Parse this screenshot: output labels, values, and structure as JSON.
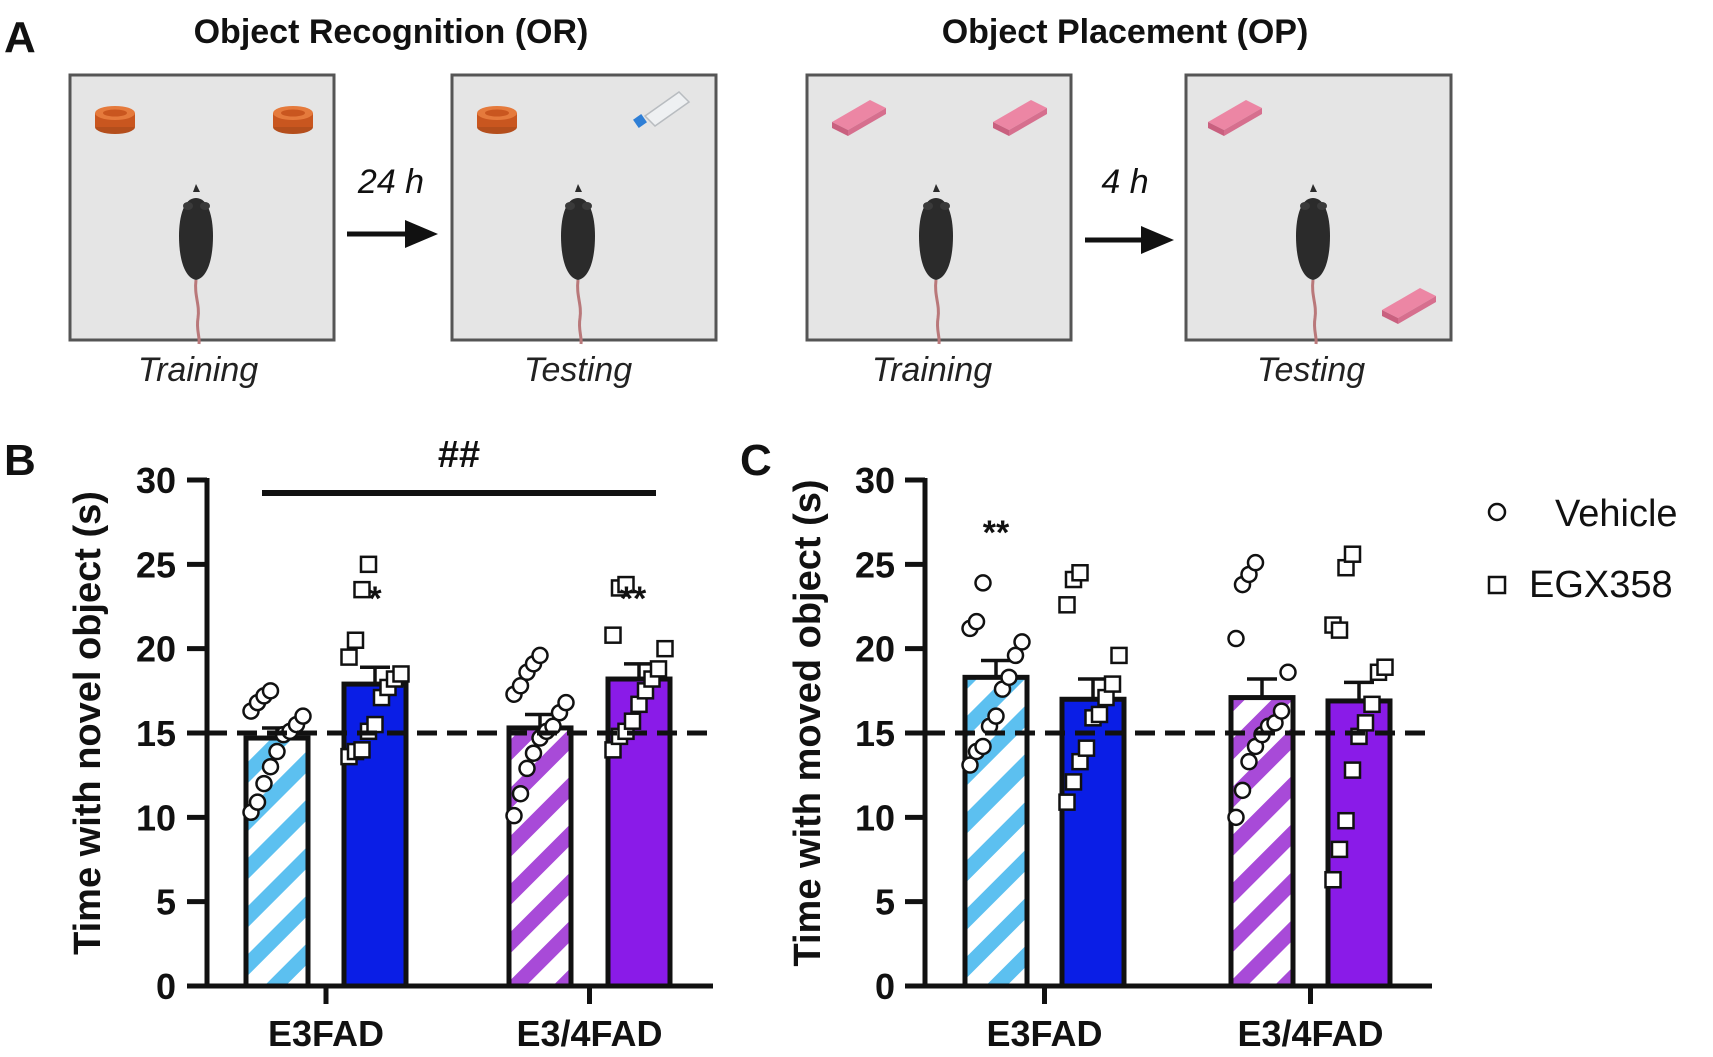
{
  "panel_a": {
    "label": "A",
    "or": {
      "title": "Object Recognition (OR)",
      "delay": "24 h",
      "training_caption": "Training",
      "testing_caption": "Testing"
    },
    "op": {
      "title": "Object Placement (OP)",
      "delay": "4 h",
      "training_caption": "Training",
      "testing_caption": "Testing"
    }
  },
  "legend": {
    "vehicle": "Vehicle",
    "egx": "EGX358"
  },
  "colors": {
    "e3_blue": "#0a1ee6",
    "e3_light": "#5cc0f0",
    "e34_purple": "#8a1be8",
    "e34_light": "#a84ad8",
    "arena": "#e5e5e5",
    "cap": "#d2622a",
    "eraser": "#ec86a4"
  },
  "chart_data": [
    {
      "panel": "B",
      "type": "bar",
      "title": "",
      "xlabel": "",
      "ylabel": "Time with novel object (s)",
      "ylim": [
        0,
        30
      ],
      "yticks": [
        0,
        5,
        10,
        15,
        20,
        25,
        30
      ],
      "chance_line": 15,
      "categories": [
        "E3FAD",
        "E3/4FAD"
      ],
      "series": [
        {
          "name": "Vehicle",
          "values": [
            14.7,
            15.3
          ],
          "sem": [
            0.6,
            0.8
          ],
          "points": [
            [
              10.3,
              10.9,
              12.0,
              13.0,
              13.9,
              14.9,
              15.1,
              15.5,
              16.0,
              16.3,
              16.8,
              17.2,
              17.5
            ],
            [
              10.1,
              11.4,
              12.9,
              13.8,
              14.7,
              15.1,
              15.4,
              16.2,
              16.8,
              17.3,
              17.8,
              18.6,
              19.1,
              19.6
            ]
          ]
        },
        {
          "name": "EGX358",
          "values": [
            17.9,
            18.2
          ],
          "sem": [
            1.0,
            0.9
          ],
          "points": [
            [
              13.6,
              13.9,
              14.0,
              15.1,
              15.5,
              17.1,
              17.7,
              18.2,
              18.5,
              19.5,
              20.5,
              23.5,
              25.0
            ],
            [
              14.0,
              14.8,
              15.1,
              15.7,
              16.7,
              17.5,
              18.2,
              18.8,
              20.0,
              20.8,
              23.6,
              23.8
            ]
          ]
        }
      ],
      "annotations": {
        "significance": [
          "*",
          "**"
        ],
        "interaction": "##"
      }
    },
    {
      "panel": "C",
      "type": "bar",
      "title": "",
      "xlabel": "",
      "ylabel": "Time with moved object (s)",
      "ylim": [
        0,
        30
      ],
      "yticks": [
        0,
        5,
        10,
        15,
        20,
        25,
        30
      ],
      "chance_line": 15,
      "categories": [
        "E3FAD",
        "E3/4FAD"
      ],
      "series": [
        {
          "name": "Vehicle",
          "values": [
            18.3,
            17.1
          ],
          "sem": [
            1.0,
            1.1
          ],
          "points": [
            [
              13.1,
              13.9,
              14.2,
              15.4,
              16.0,
              17.6,
              18.3,
              19.6,
              20.4,
              21.2,
              21.6,
              23.9
            ],
            [
              10.0,
              11.6,
              13.3,
              14.2,
              14.9,
              15.4,
              15.6,
              16.3,
              18.6,
              20.6,
              23.8,
              24.4,
              25.1
            ]
          ]
        },
        {
          "name": "EGX358",
          "values": [
            17.0,
            16.9
          ],
          "sem": [
            1.2,
            1.1
          ],
          "points": [
            [
              10.9,
              12.1,
              13.3,
              14.1,
              15.9,
              16.1,
              17.1,
              17.9,
              19.6,
              22.6,
              24.1,
              24.5
            ],
            [
              6.3,
              8.1,
              9.8,
              12.8,
              14.8,
              15.6,
              16.7,
              18.6,
              18.9,
              21.4,
              21.1,
              24.8,
              25.6
            ]
          ]
        }
      ],
      "annotations": {
        "significance": [
          "**"
        ]
      }
    }
  ]
}
